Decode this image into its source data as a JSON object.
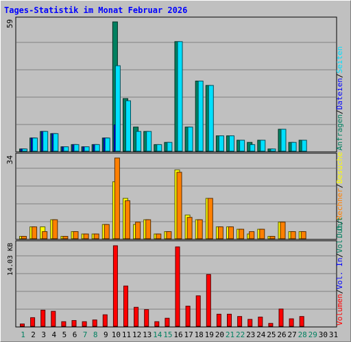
{
  "title": "Tages-Statistik im Monat Februar 2026",
  "chart_data": [
    {
      "type": "bar",
      "panel": "top",
      "ytick_label": "59",
      "ylim": [
        0,
        59
      ],
      "legend": [
        {
          "label": "Anfragen",
          "color": "#008060"
        },
        {
          "label": "Dateien",
          "color": "#0000ff"
        },
        {
          "label": "Seiten",
          "color": "#00e0ff"
        }
      ],
      "legend_separator": "/",
      "x": [
        1,
        2,
        3,
        4,
        5,
        6,
        7,
        8,
        9,
        10,
        11,
        12,
        13,
        14,
        15,
        16,
        17,
        18,
        19,
        20,
        21,
        22,
        23,
        24,
        25,
        26,
        27,
        28,
        29,
        30,
        31
      ],
      "series": [
        {
          "name": "Anfragen",
          "color": "#008060",
          "values": [
            1,
            6,
            9,
            8,
            2,
            3,
            2,
            3,
            6,
            59,
            24,
            11,
            9,
            3,
            4,
            50,
            11,
            32,
            30,
            7,
            7,
            5,
            4,
            5,
            1,
            10,
            4,
            5,
            0,
            0,
            0
          ]
        },
        {
          "name": "Dateien",
          "color": "#0000ff",
          "values": [
            1,
            6,
            9,
            8,
            2,
            3,
            2,
            3,
            6,
            12,
            0,
            0,
            0,
            0,
            0,
            0,
            0,
            0,
            0,
            0,
            0,
            0,
            0,
            0,
            0,
            0,
            0,
            0,
            0,
            0,
            0
          ]
        },
        {
          "name": "Seiten",
          "color": "#00e0ff",
          "values": [
            1,
            6,
            9,
            8,
            2,
            3,
            2,
            3,
            6,
            39,
            23,
            9,
            9,
            3,
            4,
            50,
            11,
            32,
            30,
            7,
            7,
            5,
            3,
            5,
            1,
            10,
            4,
            5,
            0,
            0,
            0
          ]
        }
      ]
    },
    {
      "type": "bar",
      "panel": "middle",
      "ytick_label": "34",
      "ylim": [
        0,
        34
      ],
      "legend": [
        {
          "label": "Out",
          "color": "#008060"
        },
        {
          "label": "Rechner",
          "color": "#ff8000"
        },
        {
          "label": "Besuche",
          "color": "#ffff00"
        }
      ],
      "legend_separator": "/",
      "x": [
        1,
        2,
        3,
        4,
        5,
        6,
        7,
        8,
        9,
        10,
        11,
        12,
        13,
        14,
        15,
        16,
        17,
        18,
        19,
        20,
        21,
        22,
        23,
        24,
        25,
        26,
        27,
        28,
        29,
        30,
        31
      ],
      "series": [
        {
          "name": "Besuche",
          "color": "#ffff00",
          "values": [
            1,
            5,
            5,
            8,
            1,
            3,
            2,
            2,
            6,
            24,
            17,
            6,
            8,
            2,
            3,
            29,
            10,
            8,
            17,
            5,
            5,
            4,
            2,
            4,
            1,
            7,
            3,
            3,
            0,
            0,
            0
          ]
        },
        {
          "name": "Rechner",
          "color": "#ff8000",
          "values": [
            1,
            5,
            3,
            8,
            1,
            3,
            2,
            2,
            6,
            34,
            16,
            7,
            8,
            2,
            3,
            28,
            9,
            8,
            17,
            5,
            5,
            4,
            3,
            4,
            1,
            7,
            3,
            3,
            0,
            0,
            0
          ]
        }
      ]
    },
    {
      "type": "bar",
      "panel": "bottom",
      "ytick_label": "14.03 KB",
      "ylim": [
        0,
        14.03
      ],
      "legend": [
        {
          "label": "Volumen",
          "color": "#ff0000"
        },
        {
          "label": "Vol. In",
          "color": "#0000ff"
        },
        {
          "label": "Vol. Out",
          "color": "#008060"
        }
      ],
      "legend_separator": "/",
      "x": [
        1,
        2,
        3,
        4,
        5,
        6,
        7,
        8,
        9,
        10,
        11,
        12,
        13,
        14,
        15,
        16,
        17,
        18,
        19,
        20,
        21,
        22,
        23,
        24,
        25,
        26,
        27,
        28,
        29,
        30,
        31
      ],
      "series": [
        {
          "name": "Volumen",
          "color": "#ff0000",
          "values": [
            0.4,
            1.5,
            2.8,
            2.6,
            0.8,
            1.0,
            0.8,
            1.1,
            2.0,
            14.0,
            7.0,
            3.3,
            2.9,
            0.8,
            1.4,
            13.8,
            3.5,
            5.3,
            9.0,
            2.1,
            2.1,
            1.7,
            1.2,
            1.6,
            0.5,
            3.0,
            1.3,
            1.7,
            0,
            0,
            0
          ]
        }
      ]
    }
  ],
  "weekend_days": [
    1,
    7,
    8,
    14,
    15,
    21,
    22,
    28,
    29
  ]
}
